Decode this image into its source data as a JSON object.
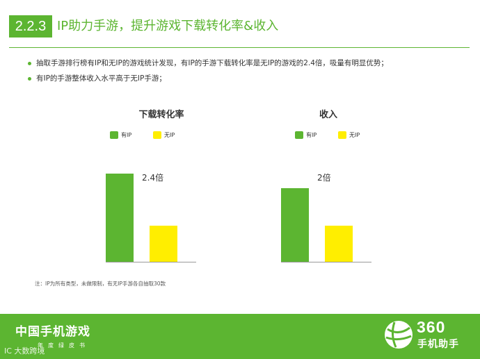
{
  "header": {
    "section_number": "2.2.3",
    "title": "IP助力手游，提升游戏下载转化率&收入"
  },
  "bullets": [
    "抽取手游排行榜有IP和无IP的游戏统计发现，有IP的手游下载转化率是无IP的游戏的2.4倍，吸量有明显优势；",
    "有IP的手游整体收入水平高于无IP手游；"
  ],
  "colors": {
    "accent": "#5cb531",
    "has_ip": "#5cb531",
    "no_ip": "#ffee00"
  },
  "chart_data": [
    {
      "type": "bar",
      "title": "下载转化率",
      "categories": [
        "有IP",
        "无IP"
      ],
      "series": [
        {
          "name": "有IP",
          "values": [
            2.4,
            null
          ]
        },
        {
          "name": "无IP",
          "values": [
            null,
            1.0
          ]
        }
      ],
      "values": [
        2.4,
        1.0
      ],
      "annotation": "2.4倍",
      "legend": "top",
      "ylim": [
        0,
        3.15
      ],
      "grid": false
    },
    {
      "type": "bar",
      "title": "收入",
      "categories": [
        "有IP",
        "无IP"
      ],
      "series": [
        {
          "name": "有IP",
          "values": [
            2.0,
            null
          ]
        },
        {
          "name": "无IP",
          "values": [
            null,
            1.0
          ]
        }
      ],
      "values": [
        2.0,
        1.0
      ],
      "annotation": "2倍",
      "legend": "top",
      "ylim": [
        0,
        3.15
      ],
      "grid": false
    }
  ],
  "note": "注：IP为所有类型，未做限制，有无IP手游各自抽取30款",
  "footer": {
    "title": "中国手机游戏",
    "subtitle": "年度绿皮书",
    "watermark": "IC 大数跨境",
    "logo_number": "360",
    "logo_text": "手机助手"
  }
}
